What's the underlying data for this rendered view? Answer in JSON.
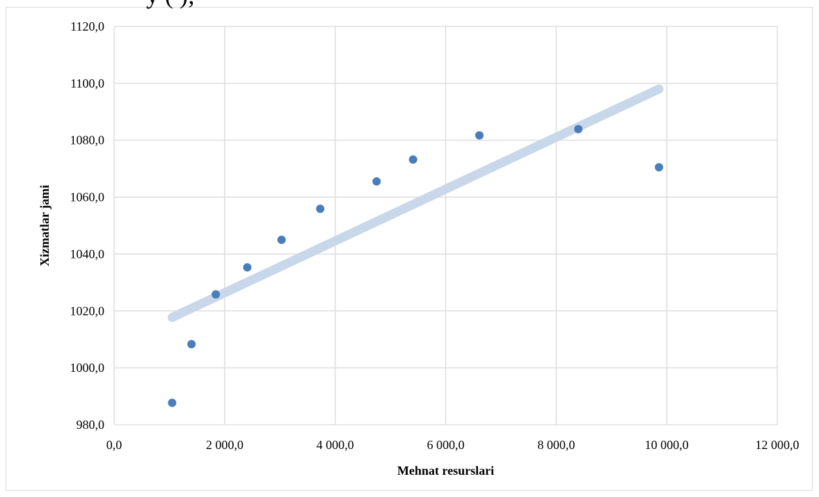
{
  "header_fragment": "y         (         );",
  "chart_data": {
    "type": "scatter",
    "xlabel": "Mehnat resurslari",
    "ylabel": "Xizmatlar jami",
    "xlim": [
      0,
      12000
    ],
    "ylim": [
      980,
      1120
    ],
    "x_ticks": [
      "0,0",
      "2 000,0",
      "4 000,0",
      "6 000,0",
      "8 000,0",
      "10 000,0",
      "12 000,0"
    ],
    "y_ticks": [
      "980,0",
      "1000,0",
      "1020,0",
      "1040,0",
      "1060,0",
      "1080,0",
      "1100,0",
      "1120,0"
    ],
    "grid": true,
    "points": [
      {
        "x": 1050,
        "y": 987.7
      },
      {
        "x": 1400,
        "y": 1008.3
      },
      {
        "x": 1840,
        "y": 1025.8
      },
      {
        "x": 2410,
        "y": 1035.3
      },
      {
        "x": 3030,
        "y": 1045.0
      },
      {
        "x": 3730,
        "y": 1055.9
      },
      {
        "x": 4750,
        "y": 1065.5
      },
      {
        "x": 5410,
        "y": 1073.2
      },
      {
        "x": 6610,
        "y": 1081.7
      },
      {
        "x": 8400,
        "y": 1083.9
      },
      {
        "x": 9860,
        "y": 1070.5
      }
    ],
    "trendline": {
      "x": [
        1050,
        9860
      ],
      "y": [
        1017.7,
        1098.0
      ]
    },
    "colors": {
      "points": "#4a7ebb",
      "trendline": "#c9d7ea",
      "grid": "#d9d9d9"
    }
  }
}
